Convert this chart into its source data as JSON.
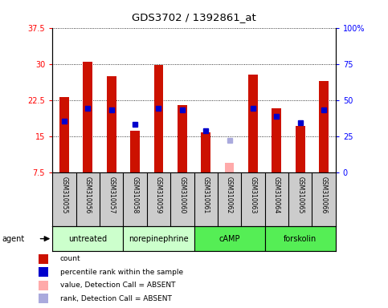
{
  "title": "GDS3702 / 1392861_at",
  "samples": [
    "GSM310055",
    "GSM310056",
    "GSM310057",
    "GSM310058",
    "GSM310059",
    "GSM310060",
    "GSM310061",
    "GSM310062",
    "GSM310063",
    "GSM310064",
    "GSM310065",
    "GSM310066"
  ],
  "bar_values": [
    23.2,
    30.5,
    27.5,
    16.2,
    29.8,
    21.5,
    15.8,
    9.5,
    27.8,
    20.8,
    17.2,
    26.5
  ],
  "rank_values_left": [
    18.2,
    20.8,
    20.5,
    17.5,
    20.8,
    20.5,
    16.2,
    14.2,
    20.8,
    19.2,
    17.8,
    20.5
  ],
  "absent_bar": [
    false,
    false,
    false,
    false,
    false,
    false,
    false,
    true,
    false,
    false,
    false,
    false
  ],
  "absent_rank": [
    false,
    false,
    false,
    false,
    false,
    false,
    false,
    true,
    false,
    false,
    false,
    false
  ],
  "groups_config": [
    {
      "label": "untreated",
      "xmin": 0,
      "xmax": 3,
      "color": "#ccffcc"
    },
    {
      "label": "norepinephrine",
      "xmin": 3,
      "xmax": 6,
      "color": "#ccffcc"
    },
    {
      "label": "cAMP",
      "xmin": 6,
      "xmax": 9,
      "color": "#55ee55"
    },
    {
      "label": "forskolin",
      "xmin": 9,
      "xmax": 12,
      "color": "#55ee55"
    }
  ],
  "ylim_left": [
    7.5,
    37.5
  ],
  "ylim_right": [
    0,
    100
  ],
  "yticks_left": [
    7.5,
    15.0,
    22.5,
    30.0,
    37.5
  ],
  "yticks_right": [
    0,
    25,
    50,
    75,
    100
  ],
  "ytick_labels_left": [
    "7.5",
    "15",
    "22.5",
    "30",
    "37.5"
  ],
  "ytick_labels_right": [
    "0",
    "25",
    "50",
    "75",
    "100%"
  ],
  "bar_color": "#cc1100",
  "rank_color_present": "#0000cc",
  "rank_color_absent": "#aaaadd",
  "absent_bar_color": "#ffaaaa",
  "bar_width": 0.4,
  "rank_marker_size": 5,
  "plot_bg_color": "#ffffff",
  "sample_label_bg": "#cccccc",
  "legend_data": [
    {
      "color": "#cc1100",
      "label": "count"
    },
    {
      "color": "#0000cc",
      "label": "percentile rank within the sample"
    },
    {
      "color": "#ffaaaa",
      "label": "value, Detection Call = ABSENT"
    },
    {
      "color": "#aaaadd",
      "label": "rank, Detection Call = ABSENT"
    }
  ]
}
